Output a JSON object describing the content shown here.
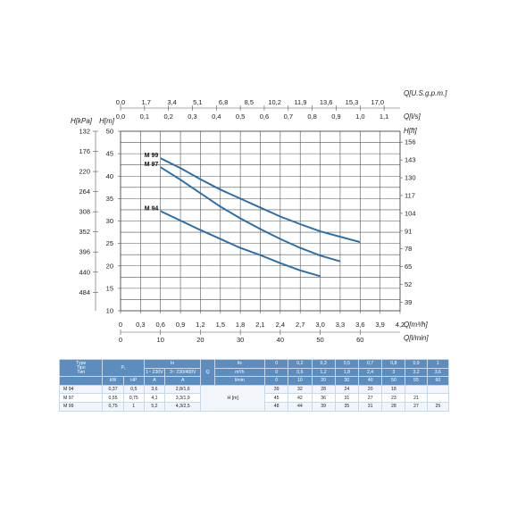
{
  "chart_data": {
    "type": "line",
    "x_axis_labels": {
      "q_usgpm": "Q[U.S.g.p.m.]",
      "q_ls": "Q[l/s]",
      "q_m3h": "Q[m³/h]",
      "q_lmin": "Q[l/min]"
    },
    "y_axis_labels": {
      "h_kpa": "H[kPa]",
      "h_m": "H[m]",
      "h_ft": "H[ft]"
    },
    "xlim_lmin": [
      0,
      60
    ],
    "ylim_m": [
      10,
      50
    ],
    "ticks": {
      "q_usgpm": [
        "0,0",
        "1,7",
        "3,4",
        "5,1",
        "6,8",
        "8,5",
        "10,2",
        "11,9",
        "13,6",
        "15,3",
        "17,0"
      ],
      "q_ls": [
        "0,0",
        "0,1",
        "0,2",
        "0,3",
        "0,4",
        "0,5",
        "0,6",
        "0,7",
        "0,8",
        "0,9",
        "1,0",
        "1,1"
      ],
      "q_m3h": [
        "0",
        "0,3",
        "0,6",
        "0,9",
        "1,2",
        "1,5",
        "1,8",
        "2,1",
        "2,4",
        "2,7",
        "3,0",
        "3,3",
        "3,6",
        "3,9",
        "4,2"
      ],
      "q_lmin": [
        "0",
        "10",
        "20",
        "30",
        "40",
        "50",
        "60"
      ],
      "h_m": [
        "10",
        "15",
        "20",
        "25",
        "30",
        "35",
        "40",
        "45",
        "50"
      ],
      "h_kpa": [
        "132",
        "176",
        "220",
        "264",
        "308",
        "352",
        "396",
        "440",
        "484"
      ],
      "h_ft": [
        "39",
        "52",
        "65",
        "78",
        "91",
        "104",
        "117",
        "130",
        "143",
        "156"
      ]
    },
    "series": [
      {
        "name": "M 99",
        "x": [
          10,
          15,
          20,
          25,
          30,
          35,
          40,
          45,
          50,
          55,
          60
        ],
        "y": [
          44,
          41.8,
          39.3,
          37.0,
          35.0,
          33.0,
          31.0,
          29.3,
          27.7,
          26.5,
          25.3
        ]
      },
      {
        "name": "M 97",
        "x": [
          10,
          15,
          20,
          25,
          30,
          35,
          40,
          45,
          50,
          55
        ],
        "y": [
          42,
          39.2,
          36.2,
          33.2,
          30.6,
          28.2,
          26.0,
          24.0,
          22.3,
          21.0
        ]
      },
      {
        "name": "M 94",
        "x": [
          10,
          15,
          20,
          25,
          30,
          35,
          40,
          45,
          50
        ],
        "y": [
          32.2,
          30.1,
          28.0,
          26.0,
          24.0,
          22.4,
          20.6,
          19.0,
          17.7
        ]
      }
    ],
    "grid": true,
    "legend": "none"
  },
  "table": {
    "header1": {
      "type": "Type",
      "tipo": "Tipo",
      "typ": "Тип",
      "p1": "P₁",
      "in": "In",
      "q": "Q",
      "ls": "l/s",
      "ls_vals": [
        "0",
        "0,2",
        "0,3",
        "0,5",
        "0,7",
        "0,8",
        "0,9",
        "1"
      ]
    },
    "header2": {
      "v1": "1~ 230V",
      "v3": "3~ 230/400V",
      "m3h": "m³/h",
      "m3h_vals": [
        "0",
        "0,6",
        "1,2",
        "1,8",
        "2,4",
        "3",
        "3,2",
        "3,6"
      ]
    },
    "header3": {
      "kw": "kW",
      "hp": "HP",
      "a1": "A",
      "a2": "A",
      "lmin": "l/min",
      "lmin_vals": [
        "0",
        "10",
        "20",
        "30",
        "40",
        "50",
        "55",
        "60"
      ]
    },
    "h_label": "H [m]",
    "rows": [
      {
        "type": "M 94",
        "kw": "0,37",
        "hp": "0,5",
        "a1": "3,6",
        "a3": "2,8/1,6",
        "h": [
          "39",
          "32",
          "28",
          "24",
          "20",
          "18",
          "",
          ""
        ]
      },
      {
        "type": "M 97",
        "kw": "0,55",
        "hp": "0,75",
        "a1": "4,1",
        "a3": "3,3/1,9",
        "h": [
          "45",
          "42",
          "36",
          "31",
          "27",
          "23",
          "21",
          ""
        ]
      },
      {
        "type": "M 99",
        "kw": "0,75",
        "hp": "1",
        "a1": "5,2",
        "a3": "4,3/2,5",
        "h": [
          "48",
          "44",
          "39",
          "35",
          "31",
          "28",
          "27",
          "25"
        ]
      }
    ]
  }
}
